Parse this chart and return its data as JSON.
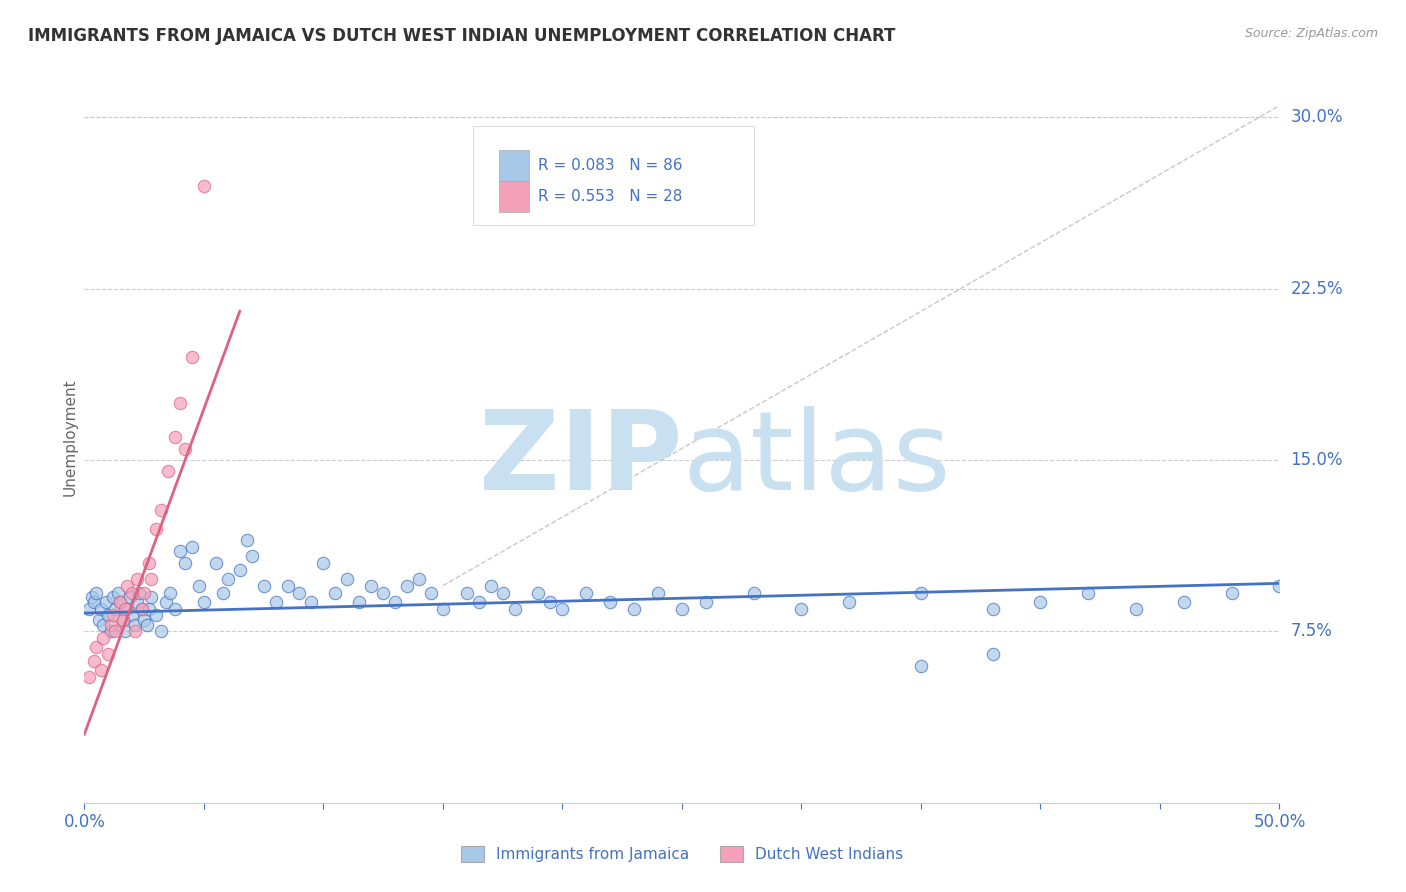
{
  "title": "IMMIGRANTS FROM JAMAICA VS DUTCH WEST INDIAN UNEMPLOYMENT CORRELATION CHART",
  "source": "Source: ZipAtlas.com",
  "ylabel": "Unemployment",
  "xlim": [
    0.0,
    0.5
  ],
  "ylim": [
    0.0,
    0.32
  ],
  "color_blue": "#A8C8E8",
  "color_pink": "#F4A0B8",
  "color_blue_text": "#4472C4",
  "color_pink_line": "#E06080",
  "background_color": "#FFFFFF",
  "watermark_color": "#C8E0F0",
  "grid_color": "#CCCCCC",
  "right_yticks": [
    0.075,
    0.15,
    0.225,
    0.3
  ],
  "right_ylabels": [
    "7.5%",
    "15.0%",
    "22.5%",
    "30.0%"
  ],
  "blue_x": [
    0.002,
    0.003,
    0.004,
    0.005,
    0.006,
    0.007,
    0.008,
    0.009,
    0.01,
    0.011,
    0.012,
    0.013,
    0.014,
    0.015,
    0.016,
    0.017,
    0.018,
    0.019,
    0.02,
    0.021,
    0.022,
    0.023,
    0.024,
    0.025,
    0.026,
    0.027,
    0.028,
    0.03,
    0.032,
    0.034,
    0.036,
    0.038,
    0.04,
    0.042,
    0.045,
    0.048,
    0.05,
    0.055,
    0.058,
    0.06,
    0.065,
    0.068,
    0.07,
    0.075,
    0.08,
    0.085,
    0.09,
    0.095,
    0.1,
    0.105,
    0.11,
    0.115,
    0.12,
    0.125,
    0.13,
    0.135,
    0.14,
    0.145,
    0.15,
    0.16,
    0.165,
    0.17,
    0.175,
    0.18,
    0.19,
    0.195,
    0.2,
    0.21,
    0.22,
    0.23,
    0.24,
    0.25,
    0.26,
    0.28,
    0.3,
    0.32,
    0.35,
    0.38,
    0.4,
    0.42,
    0.44,
    0.46,
    0.48,
    0.5,
    0.35,
    0.38
  ],
  "blue_y": [
    0.085,
    0.09,
    0.088,
    0.092,
    0.08,
    0.085,
    0.078,
    0.088,
    0.082,
    0.075,
    0.09,
    0.085,
    0.092,
    0.088,
    0.08,
    0.075,
    0.085,
    0.09,
    0.082,
    0.078,
    0.088,
    0.092,
    0.085,
    0.08,
    0.078,
    0.085,
    0.09,
    0.082,
    0.075,
    0.088,
    0.092,
    0.085,
    0.11,
    0.105,
    0.112,
    0.095,
    0.088,
    0.105,
    0.092,
    0.098,
    0.102,
    0.115,
    0.108,
    0.095,
    0.088,
    0.095,
    0.092,
    0.088,
    0.105,
    0.092,
    0.098,
    0.088,
    0.095,
    0.092,
    0.088,
    0.095,
    0.098,
    0.092,
    0.085,
    0.092,
    0.088,
    0.095,
    0.092,
    0.085,
    0.092,
    0.088,
    0.085,
    0.092,
    0.088,
    0.085,
    0.092,
    0.085,
    0.088,
    0.092,
    0.085,
    0.088,
    0.092,
    0.085,
    0.088,
    0.092,
    0.085,
    0.088,
    0.092,
    0.095,
    0.06,
    0.065
  ],
  "pink_x": [
    0.002,
    0.004,
    0.005,
    0.007,
    0.008,
    0.01,
    0.011,
    0.012,
    0.013,
    0.015,
    0.016,
    0.017,
    0.018,
    0.02,
    0.021,
    0.022,
    0.024,
    0.025,
    0.027,
    0.028,
    0.03,
    0.032,
    0.035,
    0.038,
    0.04,
    0.042,
    0.045,
    0.05
  ],
  "pink_y": [
    0.055,
    0.062,
    0.068,
    0.058,
    0.072,
    0.065,
    0.078,
    0.082,
    0.075,
    0.088,
    0.08,
    0.085,
    0.095,
    0.092,
    0.075,
    0.098,
    0.085,
    0.092,
    0.105,
    0.098,
    0.12,
    0.128,
    0.145,
    0.16,
    0.175,
    0.155,
    0.195,
    0.27
  ],
  "blue_line_x": [
    0.0,
    0.5
  ],
  "blue_line_y": [
    0.083,
    0.096
  ],
  "pink_line_x": [
    0.0,
    0.065
  ],
  "pink_line_y": [
    0.03,
    0.215
  ],
  "ref_line_x": [
    0.15,
    0.5
  ],
  "ref_line_y": [
    0.095,
    0.305
  ]
}
